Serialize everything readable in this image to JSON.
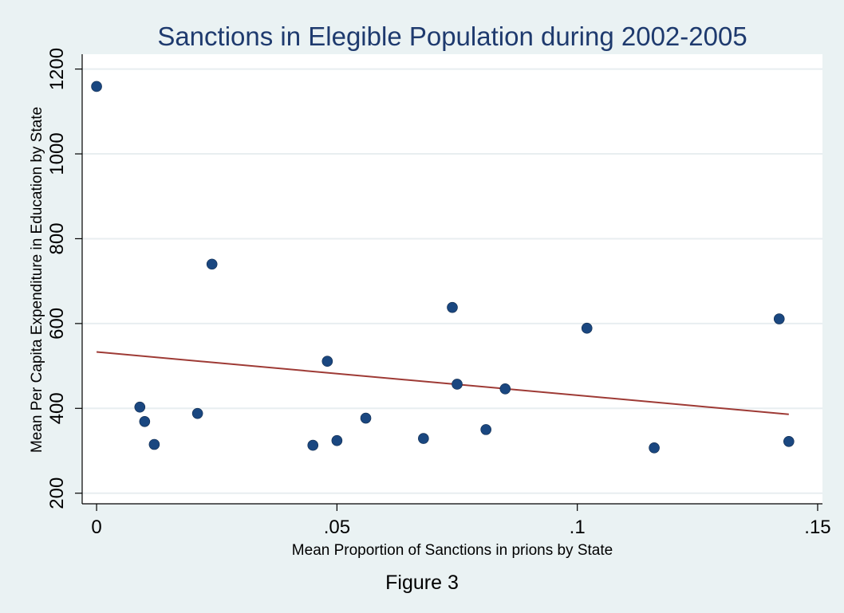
{
  "caption": "Figure 3",
  "chart_data": {
    "type": "scatter",
    "title": "Sanctions in Elegible Population during 2002-2005",
    "xlabel": "Mean Proportion of Sanctions in prions by State",
    "ylabel": "Mean Per Capita Expenditure in Education by State",
    "xlim": [
      -0.003,
      0.151
    ],
    "ylim": [
      175,
      1235
    ],
    "xticks": [
      0,
      0.05,
      0.1,
      0.15
    ],
    "xtick_labels": [
      "0",
      ".05",
      ".1",
      ".15"
    ],
    "yticks": [
      200,
      400,
      600,
      800,
      1000,
      1200
    ],
    "ytick_labels": [
      "200",
      "400",
      "600",
      "800",
      "1000",
      "1200"
    ],
    "grid": "horizontal",
    "legend": "none",
    "colors": {
      "background": "#eaf2f3",
      "plot_area": "#ffffff",
      "gridline": "#e8eef0",
      "marker": "#1a4780",
      "fit_line": "#9e3a35",
      "title": "#1e3a6e"
    },
    "series": [
      {
        "values": [
          {
            "x": 0.0,
            "y": 1159
          },
          {
            "x": 0.009,
            "y": 403
          },
          {
            "x": 0.01,
            "y": 369
          },
          {
            "x": 0.012,
            "y": 315
          },
          {
            "x": 0.021,
            "y": 388
          },
          {
            "x": 0.024,
            "y": 740
          },
          {
            "x": 0.045,
            "y": 313
          },
          {
            "x": 0.048,
            "y": 511
          },
          {
            "x": 0.05,
            "y": 324
          },
          {
            "x": 0.056,
            "y": 377
          },
          {
            "x": 0.068,
            "y": 329
          },
          {
            "x": 0.074,
            "y": 638
          },
          {
            "x": 0.075,
            "y": 457
          },
          {
            "x": 0.081,
            "y": 350
          },
          {
            "x": 0.085,
            "y": 446
          },
          {
            "x": 0.102,
            "y": 589
          },
          {
            "x": 0.116,
            "y": 307
          },
          {
            "x": 0.142,
            "y": 611
          },
          {
            "x": 0.144,
            "y": 322
          }
        ]
      }
    ],
    "fit_line": {
      "x": [
        0.0,
        0.144
      ],
      "y": [
        533,
        386
      ]
    }
  }
}
